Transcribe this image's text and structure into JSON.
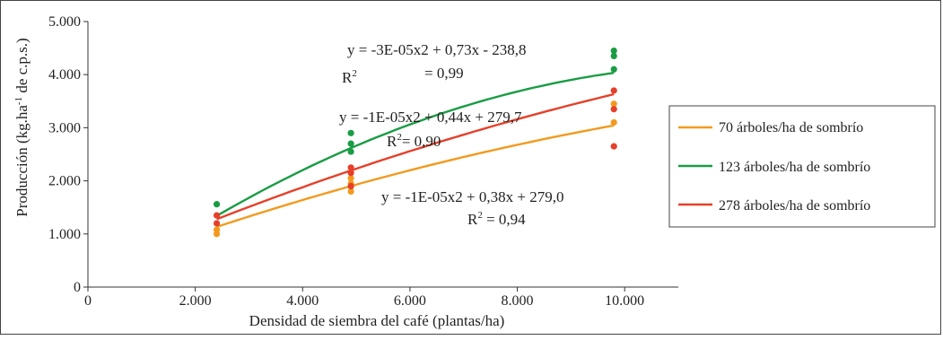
{
  "chart_data": {
    "type": "scatter",
    "xlabel": "Densidad de siembra del café (plantas/ha)",
    "ylabel_parts": [
      "Producción (kg.ha",
      "-1",
      " de c.p.s.)"
    ],
    "xlim": [
      0,
      11000
    ],
    "ylim": [
      0,
      5000
    ],
    "x_ticks": [
      0,
      2000,
      4000,
      6000,
      8000,
      10000
    ],
    "x_tick_labels": [
      "0",
      "2.000",
      "4.000",
      "6.000",
      "8.000",
      "10.000"
    ],
    "y_ticks": [
      0,
      1000,
      2000,
      3000,
      4000,
      5000
    ],
    "y_tick_labels": [
      "0",
      "1.000",
      "2.000",
      "3.000",
      "4.000",
      "5.000"
    ],
    "grid": false,
    "legend_position": "right",
    "series": [
      {
        "name": "70 árboles/ha de sombrío",
        "color": "#f39a1e",
        "points": [
          [
            2400,
            1000
          ],
          [
            2400,
            1080
          ],
          [
            4900,
            1800
          ],
          [
            4900,
            1950
          ],
          [
            4900,
            2050
          ],
          [
            9800,
            3100
          ],
          [
            9800,
            3450
          ]
        ],
        "fit": {
          "a": -1e-05,
          "b": 0.38,
          "c": 279.0,
          "x_range": [
            2400,
            9800
          ]
        },
        "equation": "y = -1E-05x2 + 0,38x + 279,0",
        "r2_label": "R",
        "r2_sup": "2",
        "r2_value": " = 0,94"
      },
      {
        "name": "123 árboles/ha de sombrío",
        "color": "#1a9c44",
        "points": [
          [
            2400,
            1560
          ],
          [
            4900,
            2550
          ],
          [
            4900,
            2700
          ],
          [
            4900,
            2900
          ],
          [
            9800,
            4100
          ],
          [
            9800,
            4350
          ],
          [
            9800,
            4450
          ]
        ],
        "fit": {
          "a": -3e-05,
          "b": 0.73,
          "c": -238.8,
          "x_range": [
            2400,
            9800
          ]
        },
        "equation": "y = -3E-05x2 + 0,73x - 238,8",
        "r2_label": "R",
        "r2_sup": "2",
        "r2_value": "= 0,99"
      },
      {
        "name": "278 árboles/ha de sombrío",
        "color": "#e6402a",
        "points": [
          [
            2400,
            1200
          ],
          [
            2400,
            1350
          ],
          [
            4900,
            1900
          ],
          [
            4900,
            2150
          ],
          [
            4900,
            2250
          ],
          [
            9800,
            2650
          ],
          [
            9800,
            3350
          ],
          [
            9800,
            3700
          ]
        ],
        "fit": {
          "a": -1e-05,
          "b": 0.44,
          "c": 279.7,
          "x_range": [
            2400,
            9800
          ]
        },
        "equation": "y = -1E-05x2 + 0,44x + 279,7",
        "r2_label": "R",
        "r2_sup": "2",
        "r2_value": "= 0,90"
      }
    ]
  }
}
